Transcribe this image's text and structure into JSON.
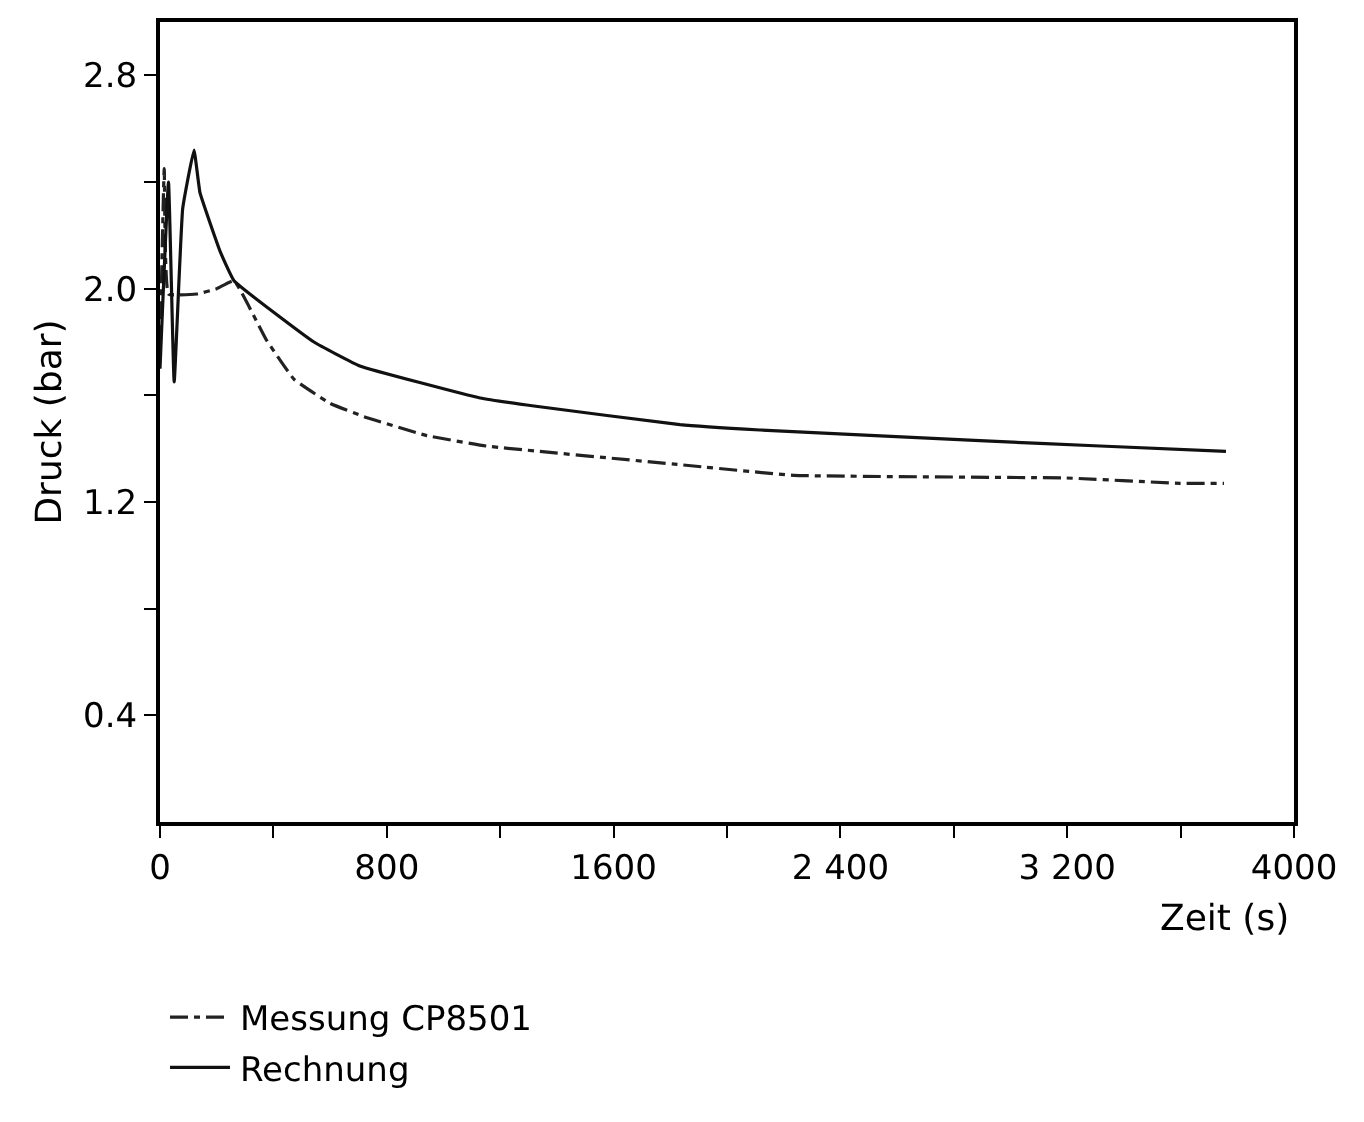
{
  "chart_data": {
    "type": "line",
    "xlabel": "Zeit (s)",
    "ylabel": "Druck (bar)",
    "xlim": [
      0,
      4000
    ],
    "ylim": [
      0,
      3.0
    ],
    "xticks": [
      0,
      {
        "value": 400,
        "label": null
      },
      800,
      {
        "value": 1200,
        "label": null
      },
      1600,
      {
        "value": 2000,
        "label": null
      },
      {
        "value": 2400,
        "label": "2 400"
      },
      {
        "value": 2800,
        "label": null
      },
      {
        "value": 3200,
        "label": "3 200"
      },
      {
        "value": 3600,
        "label": null
      },
      4000
    ],
    "yticks": [
      {
        "value": 0.4,
        "label": "0.4"
      },
      {
        "value": 0.8,
        "label": null
      },
      {
        "value": 1.2,
        "label": "1.2"
      },
      {
        "value": 1.6,
        "label": null
      },
      {
        "value": 2.0,
        "label": "2.0"
      },
      {
        "value": 2.4,
        "label": null
      },
      {
        "value": 2.8,
        "label": "2.8"
      }
    ],
    "legend": "bottom",
    "series": [
      {
        "name": "Messung CP8501",
        "color": "#222222",
        "line_style": "dashed",
        "x": [
          0,
          15,
          30,
          130,
          200,
          261,
          374,
          473,
          600,
          720,
          938,
          1150,
          1834,
          2236,
          3196,
          3598,
          3753
        ],
        "values": [
          1.75,
          2.45,
          1.98,
          1.98,
          2.0,
          2.03,
          1.81,
          1.66,
          1.57,
          1.52,
          1.45,
          1.41,
          1.34,
          1.3,
          1.29,
          1.27,
          1.27
        ]
      },
      {
        "name": "Rechnung",
        "color": "#111111",
        "line_style": "solid",
        "x": [
          0,
          30,
          50,
          80,
          120,
          141,
          212,
          261,
          543,
          705,
          1129,
          1319,
          1834,
          2116,
          2892,
          3316,
          3760
        ],
        "values": [
          1.7,
          2.4,
          1.65,
          2.3,
          2.52,
          2.36,
          2.14,
          2.03,
          1.8,
          1.71,
          1.59,
          1.56,
          1.49,
          1.47,
          1.43,
          1.41,
          1.39
        ]
      }
    ]
  }
}
